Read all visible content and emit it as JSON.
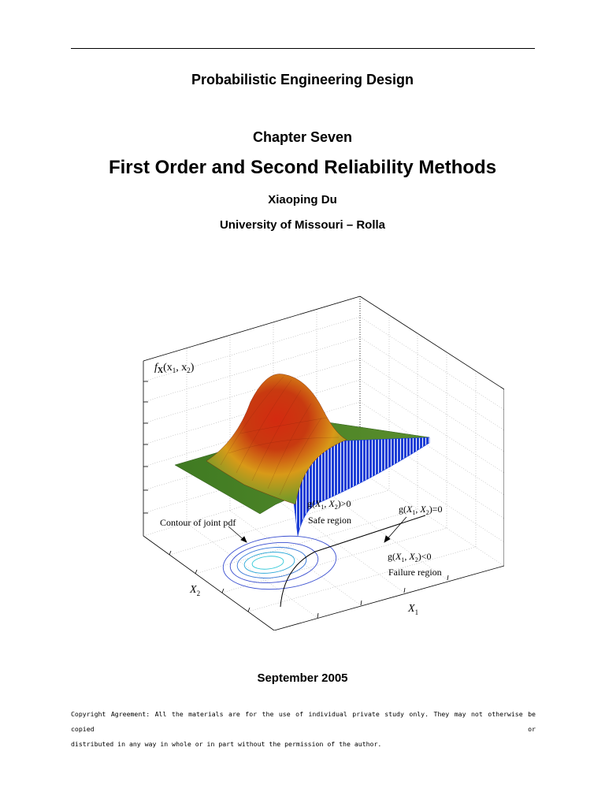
{
  "header": {
    "book_title": "Probabilistic Engineering Design",
    "chapter": "Chapter Seven",
    "title": "First Order and Second Reliability Methods",
    "author": "Xiaoping Du",
    "affiliation": "University of Missouri – Rolla"
  },
  "figure": {
    "z_label": "f",
    "z_label_sub_X": "X",
    "z_label_args": "(x",
    "z_label_sub1": "1",
    "z_label_mid": ", x",
    "z_label_sub2": "2",
    "z_label_end": ")",
    "contour_label": "Contour of joint pdf",
    "safe_cond": "g(X1, X2)>0",
    "safe_label": "Safe region",
    "limit_state": "g(X1, X2)=0",
    "failure_cond": "g(X1, X2)<0",
    "failure_label": "Failure region",
    "x1_label": "X1",
    "x2_label": "X2",
    "colors": {
      "surface_peak": "#d42a10",
      "surface_mid": "#e0b020",
      "surface_base": "#4e8a2a",
      "failure_fill": "#1b3dd6",
      "contour": "#3a4fd0"
    }
  },
  "date": "September 2005",
  "copyright": {
    "line1": "Copyright Agreement:  All the materials are for the use of individual private study only. They may not  otherwise be copied or",
    "line2": "distributed in any way in whole or in part without the permission of the author."
  }
}
